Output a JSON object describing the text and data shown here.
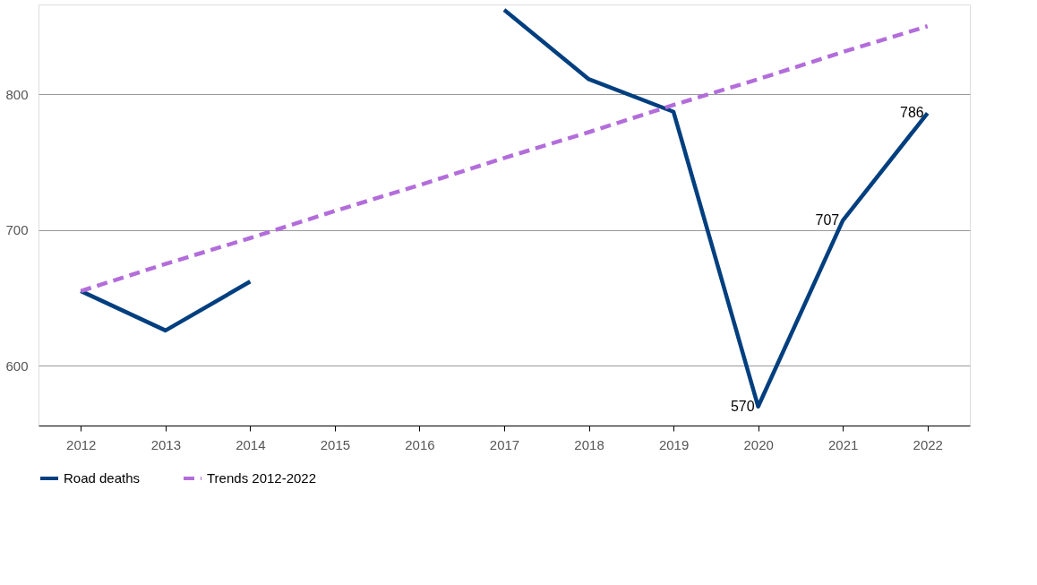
{
  "chart_data": {
    "type": "line",
    "categories": [
      "2012",
      "2013",
      "2014",
      "2015",
      "2016",
      "2017",
      "2018",
      "2019",
      "2020",
      "2021",
      "2022"
    ],
    "series": [
      {
        "name": "Road deaths",
        "color": "#003f7f",
        "line_style": "solid",
        "values": [
          655,
          626,
          662,
          null,
          null,
          862,
          811,
          787,
          570,
          707,
          786
        ],
        "value_labels": [
          null,
          null,
          null,
          null,
          null,
          null,
          null,
          null,
          "570",
          "707",
          "786"
        ]
      },
      {
        "name": "Trends 2012-2022",
        "color": "#b36ddb",
        "line_style": "dashed",
        "values": [
          655,
          675,
          694,
          714,
          733,
          753,
          772,
          792,
          811,
          831,
          850
        ]
      }
    ],
    "ylim": [
      556,
      866
    ],
    "yticks": [
      600,
      700,
      800
    ],
    "grid": "y",
    "legend": "bottom",
    "marker": "none"
  }
}
